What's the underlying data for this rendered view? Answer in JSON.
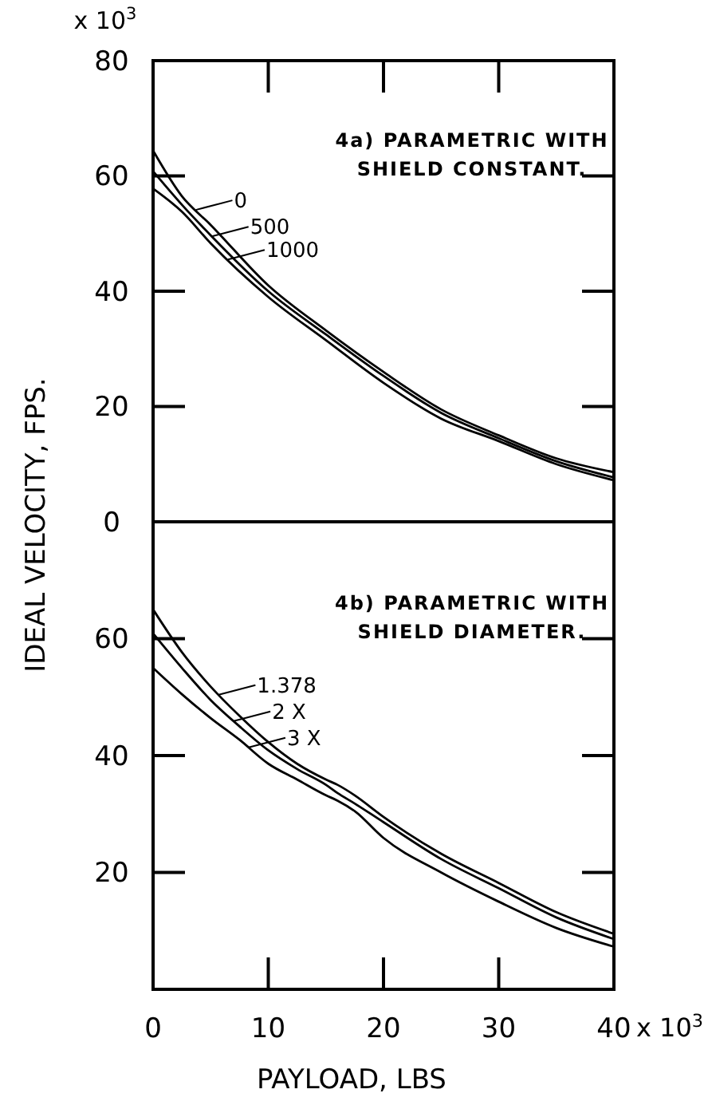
{
  "chart_data": [
    {
      "type": "line",
      "title": "4a) PARAMETRIC WITH SHIELD CONSTANT.",
      "ylabel": "IDEAL VELOCITY, FPS.",
      "annotations": [
        "x 10$^{3}$"
      ],
      "xlim": [
        0,
        40
      ],
      "xticks": [
        0,
        10,
        20,
        30,
        40
      ],
      "ylim": [
        0,
        80
      ],
      "yticks": [
        0,
        20,
        40,
        60,
        80
      ],
      "tick_labels": "y",
      "grid": false,
      "legend": "top left",
      "x": [
        0,
        2.5,
        5,
        10,
        15,
        20,
        25,
        30,
        35,
        40
      ],
      "series": [
        {
          "name": "0",
          "color": "#000000",
          "values": [
            64.4,
            56.5,
            51.5,
            41,
            33.2,
            26,
            19.5,
            15,
            11,
            8.6
          ]
        },
        {
          "name": "500",
          "color": "#000000",
          "values": [
            60.8,
            55,
            49.7,
            40,
            32.5,
            25.3,
            18.9,
            14.5,
            10.5,
            7.7
          ]
        },
        {
          "name": "1000",
          "color": "#000000",
          "values": [
            57.8,
            53.8,
            48.3,
            39,
            31.5,
            24.1,
            17.9,
            14,
            10,
            7.2
          ]
        }
      ]
    },
    {
      "type": "line",
      "title": "4b) PARAMETRIC WITH SHIELD DIAMETER.",
      "xlabel": "PAYLOAD, LBS",
      "annotations": [
        "x 10$^{3}$"
      ],
      "xlim": [
        0,
        40
      ],
      "xticks": [
        0,
        10,
        20,
        30,
        40
      ],
      "ylim": [
        0,
        80
      ],
      "yticks": [
        20,
        40,
        60
      ],
      "grid": false,
      "legend": "top left",
      "x": [
        0,
        2.5,
        5,
        7.5,
        10,
        12.5,
        15,
        16,
        17.5,
        20,
        25,
        30,
        35,
        40
      ],
      "series": [
        {
          "name": "1.378",
          "color": "#000000",
          "values": [
            65,
            57.7,
            51.8,
            46.8,
            42.3,
            38.6,
            35.9,
            35,
            33.2,
            29.5,
            23.2,
            18.2,
            13.2,
            9.5
          ]
        },
        {
          "name": "2 X",
          "color": "#000000",
          "values": [
            60.9,
            55,
            49.5,
            45,
            40.9,
            37.7,
            35,
            33.6,
            31.8,
            28.6,
            22.3,
            17.3,
            12.3,
            8.6
          ]
        },
        {
          "name": "3 X",
          "color": "#000000",
          "values": [
            55,
            50.5,
            46.4,
            42.7,
            38.6,
            35.9,
            33.2,
            32.3,
            30.5,
            25.9,
            20,
            15,
            10.5,
            7.3
          ]
        }
      ]
    }
  ]
}
